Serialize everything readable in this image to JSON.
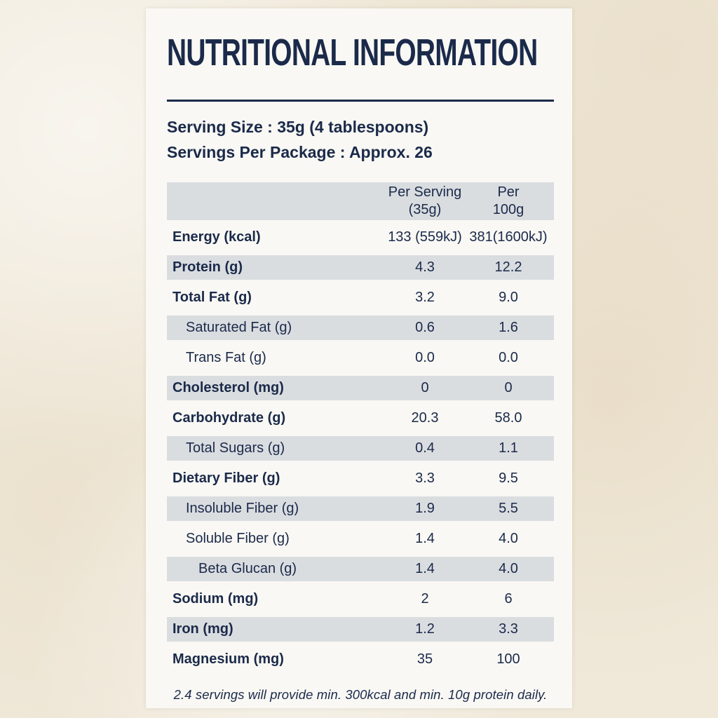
{
  "label": {
    "title": "NUTRITIONAL INFORMATION",
    "serving": {
      "size_line": "Serving Size : 35g (4 tablespoons)",
      "per_package_line": "Servings Per Package : Approx. 26"
    },
    "columns": {
      "col2_line1": "Per Serving",
      "col2_line2": "(35g)",
      "col3_line1": "Per",
      "col3_line2": "100g"
    },
    "rows": [
      {
        "name": "Energy (kcal)",
        "per_serving": "133 (559kJ)",
        "per_100g": "381(1600kJ)",
        "bold": true,
        "indent": 0,
        "shaded": false
      },
      {
        "name": "Protein (g)",
        "per_serving": "4.3",
        "per_100g": "12.2",
        "bold": true,
        "indent": 0,
        "shaded": true
      },
      {
        "name": "Total Fat (g)",
        "per_serving": "3.2",
        "per_100g": "9.0",
        "bold": true,
        "indent": 0,
        "shaded": false
      },
      {
        "name": "Saturated Fat (g)",
        "per_serving": "0.6",
        "per_100g": "1.6",
        "bold": false,
        "indent": 1,
        "shaded": true
      },
      {
        "name": "Trans Fat (g)",
        "per_serving": "0.0",
        "per_100g": "0.0",
        "bold": false,
        "indent": 1,
        "shaded": false
      },
      {
        "name": "Cholesterol (mg)",
        "per_serving": "0",
        "per_100g": "0",
        "bold": true,
        "indent": 0,
        "shaded": true
      },
      {
        "name": "Carbohydrate (g)",
        "per_serving": "20.3",
        "per_100g": "58.0",
        "bold": true,
        "indent": 0,
        "shaded": false
      },
      {
        "name": "Total Sugars (g)",
        "per_serving": "0.4",
        "per_100g": "1.1",
        "bold": false,
        "indent": 1,
        "shaded": true
      },
      {
        "name": "Dietary Fiber (g)",
        "per_serving": "3.3",
        "per_100g": "9.5",
        "bold": true,
        "indent": 0,
        "shaded": false
      },
      {
        "name": "Insoluble Fiber (g)",
        "per_serving": "1.9",
        "per_100g": "5.5",
        "bold": false,
        "indent": 1,
        "shaded": true
      },
      {
        "name": "Soluble Fiber (g)",
        "per_serving": "1.4",
        "per_100g": "4.0",
        "bold": false,
        "indent": 1,
        "shaded": false
      },
      {
        "name": "Beta Glucan (g)",
        "per_serving": "1.4",
        "per_100g": "4.0",
        "bold": false,
        "indent": 2,
        "shaded": true
      },
      {
        "name": "Sodium (mg)",
        "per_serving": "2",
        "per_100g": "6",
        "bold": true,
        "indent": 0,
        "shaded": false
      },
      {
        "name": "Iron (mg)",
        "per_serving": "1.2",
        "per_100g": "3.3",
        "bold": true,
        "indent": 0,
        "shaded": true
      },
      {
        "name": "Magnesium (mg)",
        "per_serving": "35",
        "per_100g": "100",
        "bold": true,
        "indent": 0,
        "shaded": false
      }
    ],
    "footnote": "2.4 servings will provide min. 300kcal and min. 10g protein daily.",
    "colors": {
      "navy": "#1b2a4a",
      "band_gray": "#dadde0",
      "card_background": "#f9f8f4",
      "paper_background": "#f0e9da"
    }
  }
}
